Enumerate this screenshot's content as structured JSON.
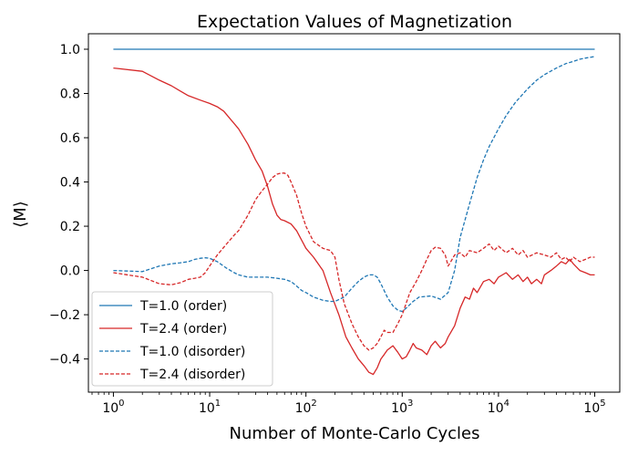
{
  "chart_data": {
    "type": "line",
    "title": "Expectation Values of Magnetization",
    "xlabel": "Number of Monte-Carlo Cycles",
    "ylabel": "⟨M⟩",
    "xscale": "log",
    "xlim": [
      1,
      100000
    ],
    "ylim": [
      -0.55,
      1.07
    ],
    "x_ticks": [
      {
        "value": 1,
        "base": "10",
        "exp": "0"
      },
      {
        "value": 10,
        "base": "10",
        "exp": "1"
      },
      {
        "value": 100,
        "base": "10",
        "exp": "2"
      },
      {
        "value": 1000,
        "base": "10",
        "exp": "3"
      },
      {
        "value": 10000,
        "base": "10",
        "exp": "4"
      },
      {
        "value": 100000,
        "base": "10",
        "exp": "5"
      }
    ],
    "y_ticks": [
      {
        "value": 1.0,
        "label": "1.0"
      },
      {
        "value": 0.8,
        "label": "0.8"
      },
      {
        "value": 0.6,
        "label": "0.6"
      },
      {
        "value": 0.4,
        "label": "0.4"
      },
      {
        "value": 0.2,
        "label": "0.2"
      },
      {
        "value": 0.0,
        "label": "0.0"
      },
      {
        "value": -0.2,
        "label": "−0.2"
      },
      {
        "value": -0.4,
        "label": "−0.4"
      }
    ],
    "grid": false,
    "legend_position": "lower-left",
    "series": [
      {
        "name": "T=1.0 (order)",
        "color": "#1f77b4",
        "dashed": false,
        "points": [
          [
            1,
            1.0
          ],
          [
            100000,
            1.0
          ]
        ]
      },
      {
        "name": "T=2.4 (order)",
        "color": "#d62728",
        "dashed": false,
        "points": [
          [
            1,
            0.915
          ],
          [
            2,
            0.9
          ],
          [
            3,
            0.86
          ],
          [
            4,
            0.835
          ],
          [
            5,
            0.81
          ],
          [
            6,
            0.79
          ],
          [
            8,
            0.77
          ],
          [
            10,
            0.755
          ],
          [
            12,
            0.74
          ],
          [
            14,
            0.72
          ],
          [
            16,
            0.69
          ],
          [
            20,
            0.64
          ],
          [
            25,
            0.57
          ],
          [
            30,
            0.5
          ],
          [
            35,
            0.45
          ],
          [
            40,
            0.38
          ],
          [
            45,
            0.3
          ],
          [
            50,
            0.25
          ],
          [
            55,
            0.23
          ],
          [
            60,
            0.225
          ],
          [
            70,
            0.21
          ],
          [
            80,
            0.18
          ],
          [
            100,
            0.1
          ],
          [
            120,
            0.06
          ],
          [
            150,
            0.0
          ],
          [
            180,
            -0.1
          ],
          [
            220,
            -0.2
          ],
          [
            260,
            -0.3
          ],
          [
            300,
            -0.35
          ],
          [
            350,
            -0.4
          ],
          [
            400,
            -0.43
          ],
          [
            450,
            -0.46
          ],
          [
            500,
            -0.47
          ],
          [
            550,
            -0.44
          ],
          [
            600,
            -0.4
          ],
          [
            650,
            -0.38
          ],
          [
            700,
            -0.36
          ],
          [
            800,
            -0.34
          ],
          [
            900,
            -0.37
          ],
          [
            1000,
            -0.4
          ],
          [
            1100,
            -0.39
          ],
          [
            1200,
            -0.36
          ],
          [
            1300,
            -0.33
          ],
          [
            1400,
            -0.35
          ],
          [
            1600,
            -0.36
          ],
          [
            1800,
            -0.38
          ],
          [
            2000,
            -0.34
          ],
          [
            2200,
            -0.32
          ],
          [
            2500,
            -0.35
          ],
          [
            2800,
            -0.33
          ],
          [
            3000,
            -0.3
          ],
          [
            3500,
            -0.25
          ],
          [
            4000,
            -0.17
          ],
          [
            4500,
            -0.12
          ],
          [
            5000,
            -0.13
          ],
          [
            5500,
            -0.08
          ],
          [
            6000,
            -0.1
          ],
          [
            7000,
            -0.05
          ],
          [
            8000,
            -0.04
          ],
          [
            9000,
            -0.06
          ],
          [
            10000,
            -0.03
          ],
          [
            12000,
            -0.01
          ],
          [
            14000,
            -0.04
          ],
          [
            16000,
            -0.02
          ],
          [
            18000,
            -0.05
          ],
          [
            20000,
            -0.03
          ],
          [
            22000,
            -0.06
          ],
          [
            25000,
            -0.04
          ],
          [
            28000,
            -0.06
          ],
          [
            30000,
            -0.02
          ],
          [
            35000,
            0.0
          ],
          [
            40000,
            0.02
          ],
          [
            45000,
            0.04
          ],
          [
            50000,
            0.03
          ],
          [
            55000,
            0.05
          ],
          [
            60000,
            0.03
          ],
          [
            70000,
            0.0
          ],
          [
            80000,
            -0.01
          ],
          [
            90000,
            -0.02
          ],
          [
            100000,
            -0.02
          ]
        ]
      },
      {
        "name": "T=1.0 (disorder)",
        "color": "#1f77b4",
        "dashed": true,
        "points": [
          [
            1,
            0.0
          ],
          [
            2,
            -0.005
          ],
          [
            3,
            0.02
          ],
          [
            4,
            0.03
          ],
          [
            5,
            0.035
          ],
          [
            6,
            0.04
          ],
          [
            7,
            0.05
          ],
          [
            8,
            0.055
          ],
          [
            9,
            0.057
          ],
          [
            10,
            0.055
          ],
          [
            12,
            0.04
          ],
          [
            15,
            0.01
          ],
          [
            18,
            -0.01
          ],
          [
            20,
            -0.02
          ],
          [
            25,
            -0.03
          ],
          [
            30,
            -0.03
          ],
          [
            40,
            -0.03
          ],
          [
            50,
            -0.035
          ],
          [
            60,
            -0.04
          ],
          [
            70,
            -0.05
          ],
          [
            80,
            -0.07
          ],
          [
            90,
            -0.09
          ],
          [
            100,
            -0.1
          ],
          [
            120,
            -0.12
          ],
          [
            150,
            -0.135
          ],
          [
            180,
            -0.14
          ],
          [
            200,
            -0.14
          ],
          [
            250,
            -0.12
          ],
          [
            300,
            -0.08
          ],
          [
            350,
            -0.05
          ],
          [
            400,
            -0.03
          ],
          [
            450,
            -0.02
          ],
          [
            500,
            -0.02
          ],
          [
            550,
            -0.03
          ],
          [
            600,
            -0.06
          ],
          [
            700,
            -0.12
          ],
          [
            800,
            -0.16
          ],
          [
            900,
            -0.18
          ],
          [
            1000,
            -0.185
          ],
          [
            1100,
            -0.17
          ],
          [
            1300,
            -0.14
          ],
          [
            1500,
            -0.12
          ],
          [
            2000,
            -0.115
          ],
          [
            2500,
            -0.13
          ],
          [
            3000,
            -0.1
          ],
          [
            3500,
            0.0
          ],
          [
            4000,
            0.15
          ],
          [
            5000,
            0.3
          ],
          [
            6000,
            0.42
          ],
          [
            7000,
            0.5
          ],
          [
            8000,
            0.56
          ],
          [
            10000,
            0.64
          ],
          [
            12000,
            0.7
          ],
          [
            15000,
            0.76
          ],
          [
            20000,
            0.82
          ],
          [
            25000,
            0.86
          ],
          [
            30000,
            0.885
          ],
          [
            40000,
            0.915
          ],
          [
            50000,
            0.935
          ],
          [
            60000,
            0.945
          ],
          [
            70000,
            0.955
          ],
          [
            80000,
            0.96
          ],
          [
            100000,
            0.967
          ]
        ]
      },
      {
        "name": "T=2.4 (disorder)",
        "color": "#d62728",
        "dashed": true,
        "points": [
          [
            1,
            -0.01
          ],
          [
            2,
            -0.03
          ],
          [
            3,
            -0.06
          ],
          [
            4,
            -0.065
          ],
          [
            5,
            -0.055
          ],
          [
            6,
            -0.04
          ],
          [
            7,
            -0.035
          ],
          [
            8,
            -0.03
          ],
          [
            9,
            -0.01
          ],
          [
            10,
            0.02
          ],
          [
            12,
            0.07
          ],
          [
            15,
            0.12
          ],
          [
            18,
            0.16
          ],
          [
            20,
            0.18
          ],
          [
            25,
            0.25
          ],
          [
            30,
            0.32
          ],
          [
            35,
            0.36
          ],
          [
            40,
            0.39
          ],
          [
            45,
            0.42
          ],
          [
            50,
            0.435
          ],
          [
            55,
            0.44
          ],
          [
            60,
            0.44
          ],
          [
            65,
            0.43
          ],
          [
            70,
            0.4
          ],
          [
            80,
            0.34
          ],
          [
            90,
            0.26
          ],
          [
            100,
            0.2
          ],
          [
            120,
            0.13
          ],
          [
            150,
            0.1
          ],
          [
            180,
            0.09
          ],
          [
            200,
            0.06
          ],
          [
            220,
            -0.04
          ],
          [
            250,
            -0.15
          ],
          [
            300,
            -0.24
          ],
          [
            350,
            -0.3
          ],
          [
            400,
            -0.34
          ],
          [
            450,
            -0.36
          ],
          [
            500,
            -0.35
          ],
          [
            550,
            -0.33
          ],
          [
            600,
            -0.3
          ],
          [
            650,
            -0.27
          ],
          [
            700,
            -0.28
          ],
          [
            800,
            -0.28
          ],
          [
            900,
            -0.24
          ],
          [
            1000,
            -0.2
          ],
          [
            1200,
            -0.1
          ],
          [
            1400,
            -0.05
          ],
          [
            1600,
            0.0
          ],
          [
            1800,
            0.05
          ],
          [
            2000,
            0.09
          ],
          [
            2200,
            0.105
          ],
          [
            2500,
            0.1
          ],
          [
            2800,
            0.07
          ],
          [
            3000,
            0.02
          ],
          [
            3200,
            0.04
          ],
          [
            3500,
            0.07
          ],
          [
            4000,
            0.08
          ],
          [
            4500,
            0.06
          ],
          [
            5000,
            0.09
          ],
          [
            6000,
            0.08
          ],
          [
            7000,
            0.1
          ],
          [
            8000,
            0.12
          ],
          [
            9000,
            0.09
          ],
          [
            10000,
            0.11
          ],
          [
            12000,
            0.08
          ],
          [
            14000,
            0.1
          ],
          [
            16000,
            0.07
          ],
          [
            18000,
            0.09
          ],
          [
            20000,
            0.06
          ],
          [
            25000,
            0.08
          ],
          [
            30000,
            0.07
          ],
          [
            35000,
            0.06
          ],
          [
            40000,
            0.08
          ],
          [
            45000,
            0.05
          ],
          [
            50000,
            0.06
          ],
          [
            55000,
            0.04
          ],
          [
            60000,
            0.06
          ],
          [
            70000,
            0.04
          ],
          [
            80000,
            0.05
          ],
          [
            90000,
            0.06
          ],
          [
            100000,
            0.06
          ]
        ]
      }
    ]
  }
}
